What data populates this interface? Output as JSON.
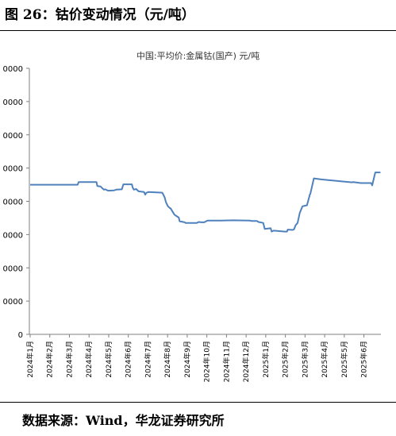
{
  "figure": {
    "title": "图 26：钴价变动情况（元/吨）",
    "source": "数据来源：Wind，华龙证券研究所"
  },
  "chart_data": {
    "type": "line",
    "title": "中国:平均价:金属钴(国产) 元/吨",
    "y_tick_labels": [
      "0",
      "0000",
      "0000",
      "0000",
      "0000",
      "0000",
      "0000",
      "0000",
      "0000"
    ],
    "ylim": [
      0,
      8
    ],
    "x_tick_labels": [
      "2024年1月",
      "2024年2月",
      "2024年3月",
      "2024年4月",
      "2024年5月",
      "2024年6月",
      "2024年7月",
      "2024年8月",
      "2024年9月",
      "2024年10月",
      "2024年11月",
      "2024年12月",
      "2025年1月",
      "2025年2月",
      "2025年3月",
      "2025年4月",
      "2025年5月",
      "2025年6月"
    ],
    "xlim": [
      0,
      17.85
    ],
    "line_color": "#4f81bd",
    "series": [
      {
        "x": [
          0,
          2.42,
          2.47,
          3.38,
          3.42,
          3.58,
          3.75,
          3.82,
          3.97,
          4.27,
          4.39,
          4.67,
          4.75,
          5.18,
          5.22,
          5.28,
          5.4,
          5.52,
          5.8,
          5.86,
          5.91,
          6.01,
          6.73,
          6.85,
          6.91,
          7.01,
          7.11,
          7.15,
          7.35,
          7.57,
          7.61,
          7.87,
          7.91,
          8.49,
          8.59,
          8.71,
          8.87,
          9.03,
          9.71,
          10.32,
          11.21,
          11.26,
          11.55,
          11.63,
          11.87,
          11.95,
          12.25,
          12.3,
          12.4,
          12.97,
          13.08,
          13.12,
          13.37,
          13.44,
          13.52,
          13.62,
          13.73,
          13.87,
          14.1,
          14.25,
          14.27,
          14.45,
          14.82,
          16.39,
          16.45,
          16.73,
          16.83,
          16.89,
          17.37,
          17.42,
          17.58,
          17.84
        ],
        "y": [
          4.5,
          4.5,
          4.58,
          4.58,
          4.46,
          4.45,
          4.35,
          4.36,
          4.32,
          4.33,
          4.35,
          4.36,
          4.51,
          4.51,
          4.42,
          4.35,
          4.37,
          4.3,
          4.28,
          4.2,
          4.25,
          4.28,
          4.26,
          4.12,
          3.98,
          3.86,
          3.8,
          3.79,
          3.6,
          3.51,
          3.4,
          3.37,
          3.35,
          3.35,
          3.38,
          3.37,
          3.37,
          3.42,
          3.42,
          3.43,
          3.42,
          3.41,
          3.41,
          3.38,
          3.35,
          3.17,
          3.19,
          3.09,
          3.12,
          3.09,
          3.09,
          3.15,
          3.14,
          3.16,
          3.28,
          3.35,
          3.65,
          3.85,
          3.88,
          4.21,
          4.22,
          4.69,
          4.66,
          4.57,
          4.58,
          4.56,
          4.55,
          4.55,
          4.55,
          4.48,
          4.87,
          4.87
        ],
        "note_ignore": ""
      }
    ],
    "grid": false,
    "legend": "none"
  }
}
